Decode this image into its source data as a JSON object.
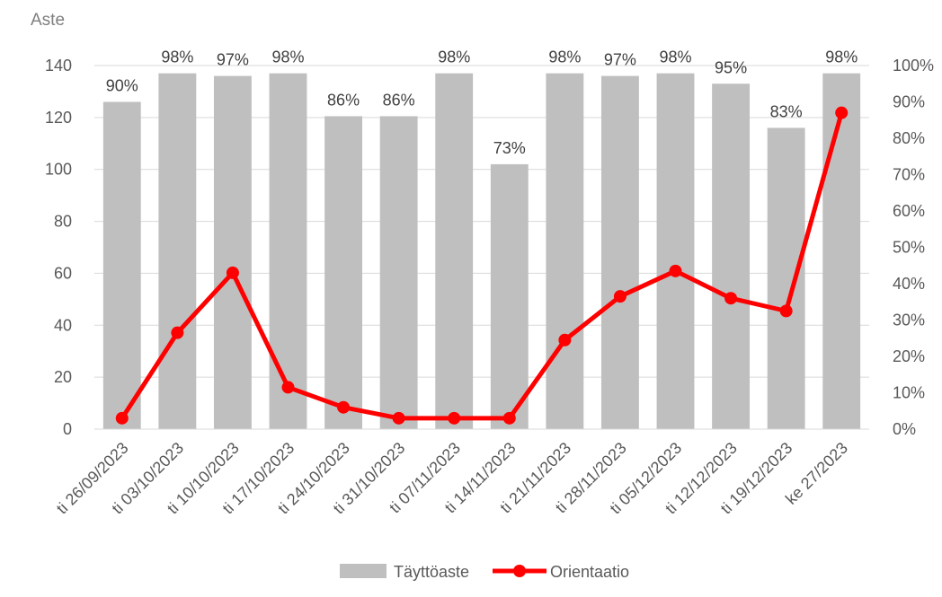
{
  "chart_data": {
    "type": "bar",
    "title": "Aste",
    "categories": [
      "ti 26/09/2023",
      "ti 03/10/2023",
      "ti 10/10/2023",
      "ti 17/10/2023",
      "ti 24/10/2023",
      "ti 31/10/2023",
      "ti 07/11/2023",
      "ti 14/11/2023",
      "ti 21/11/2023",
      "ti 28/11/2023",
      "ti 05/12/2023",
      "ti 12/12/2023",
      "ti 19/12/2023",
      "ke 27/2023"
    ],
    "series": [
      {
        "name": "Täyttöaste",
        "type": "bar",
        "axis": "left",
        "values": [
          126,
          137,
          136,
          137,
          120.5,
          120.5,
          137,
          102,
          137,
          136,
          137,
          133,
          116,
          137
        ],
        "labels": [
          "90%",
          "98%",
          "97%",
          "98%",
          "86%",
          "86%",
          "98%",
          "73%",
          "98%",
          "97%",
          "98%",
          "95%",
          "83%",
          "98%"
        ],
        "color": "#bfbfbf"
      },
      {
        "name": "Orientaatio",
        "type": "line",
        "axis": "right",
        "values": [
          0.03,
          0.265,
          0.43,
          0.115,
          0.06,
          0.03,
          0.03,
          0.03,
          0.245,
          0.365,
          0.435,
          0.36,
          0.325,
          0.87
        ],
        "color": "#ff0000"
      }
    ],
    "y_left": {
      "min": 0,
      "max": 140,
      "ticks": [
        "0",
        "20",
        "40",
        "60",
        "80",
        "100",
        "120",
        "140"
      ]
    },
    "y_right": {
      "min": 0,
      "max": 1,
      "ticks": [
        "0%",
        "10%",
        "20%",
        "30%",
        "40%",
        "50%",
        "60%",
        "70%",
        "80%",
        "90%",
        "100%"
      ]
    },
    "grid": true,
    "legend_position": "bottom"
  }
}
